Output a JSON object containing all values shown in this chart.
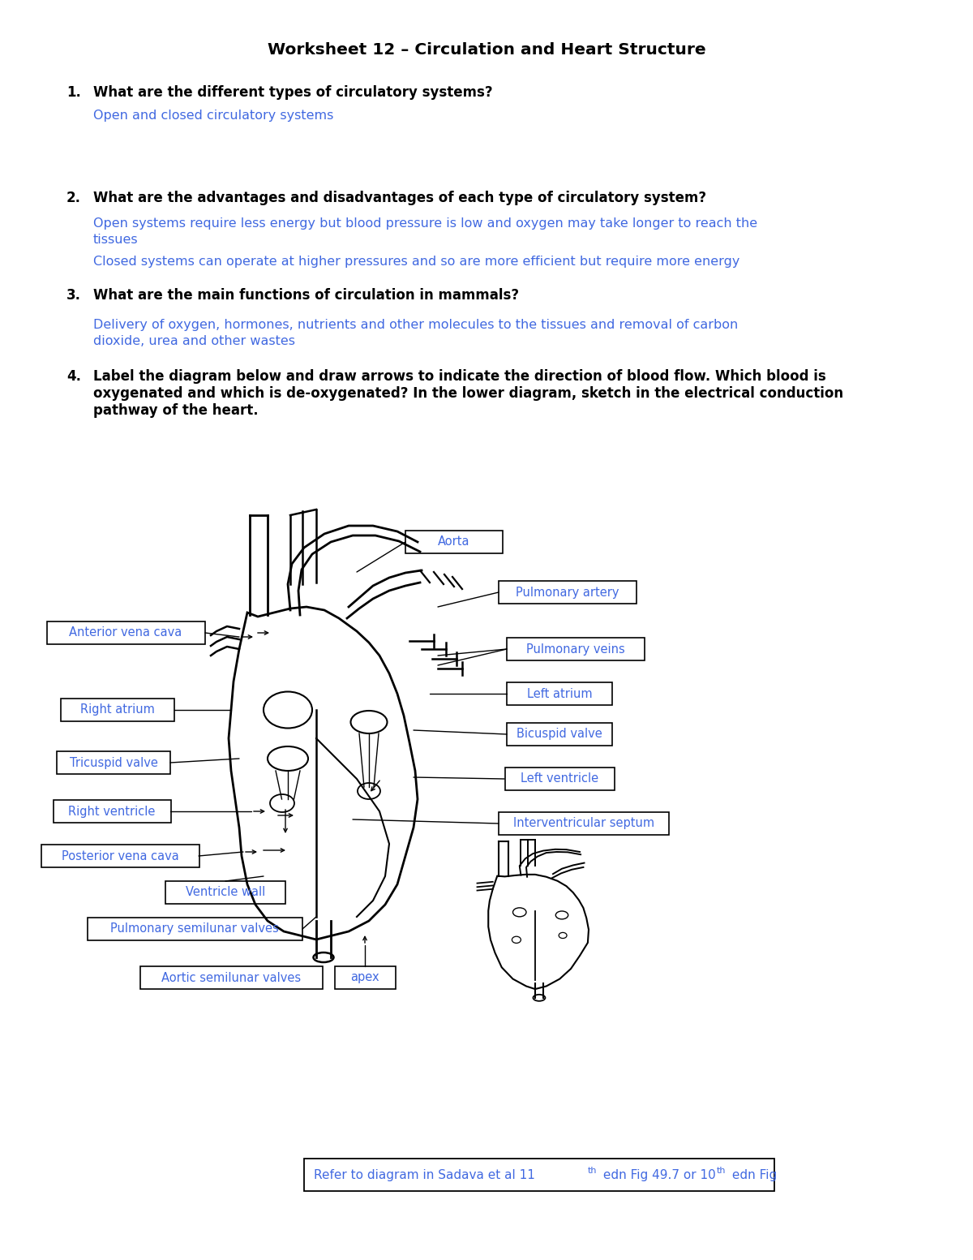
{
  "title": "Worksheet 12 – Circulation and Heart Structure",
  "bg_color": "#ffffff",
  "text_color_black": "#000000",
  "text_color_blue": "#4169E1",
  "q1_text": "What are the different types of circulatory systems?",
  "q1_answer": "Open and closed circulatory systems",
  "q2_text": "What are the advantages and disadvantages of each type of circulatory system?",
  "q2_answer1": "Open systems require less energy but blood pressure is low and oxygen may take longer to reach the",
  "q2_answer1b": "tissues",
  "q2_answer2": "Closed systems can operate at higher pressures and so are more efficient but require more energy",
  "q3_text": "What are the main functions of circulation in mammals?",
  "q3_answer": "Delivery of oxygen, hormones, nutrients and other molecules to the tissues and removal of carbon",
  "q3_answerb": "dioxide, urea and other wastes",
  "q4_text1": "Label the diagram below and draw arrows to indicate the direction of blood flow. Which blood is",
  "q4_text2": "oxygenated and which is de-oxygenated? In the lower diagram, sketch in the electrical conduction",
  "q4_text3": "pathway of the heart.",
  "label_aorta": "Aorta",
  "label_pulmonary_artery": "Pulmonary artery",
  "label_pulmonary_veins": "Pulmonary veins",
  "label_left_atrium": "Left atrium",
  "label_bicuspid": "Bicuspid valve",
  "label_left_ventricle": "Left ventricle",
  "label_interventricular": "Interventricular septum",
  "label_anterior_vena_cava": "Anterior vena cava",
  "label_right_atrium": "Right atrium",
  "label_tricuspid": "Tricuspid valve",
  "label_right_ventricle": "Right ventricle",
  "label_posterior_vena_cava": "Posterior vena cava",
  "label_ventricle_wall": "Ventricle wall",
  "label_pulmonary_semilunar": "Pulmonary semilunar valves",
  "label_aortic_semilunar": "Aortic semilunar valves",
  "label_apex": "apex",
  "footer_text": "Refer to diagram in Sadava et al 11",
  "footer_super1": "th",
  "footer_mid": " edn Fig 49.7 or 10",
  "footer_super2": "th",
  "footer_end": " edn Fig"
}
